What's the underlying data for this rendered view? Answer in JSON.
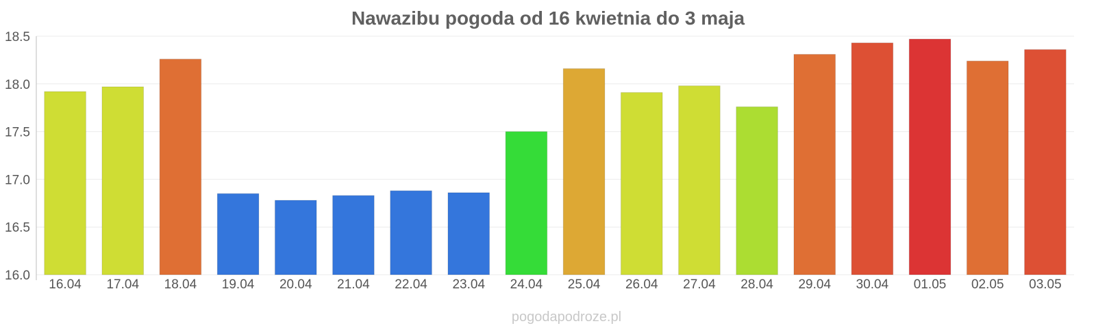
{
  "chart_data": {
    "type": "bar",
    "title": "Nawazibu pogoda od 16 kwietnia do 3 maja",
    "xlabel": "",
    "ylabel": "",
    "ylim": [
      16.0,
      18.5
    ],
    "yticks": [
      "16.0",
      "16.5",
      "17.0",
      "17.5",
      "18.0",
      "18.5"
    ],
    "categories": [
      "16.04",
      "17.04",
      "18.04",
      "19.04",
      "20.04",
      "21.04",
      "22.04",
      "23.04",
      "24.04",
      "25.04",
      "26.04",
      "27.04",
      "28.04",
      "29.04",
      "30.04",
      "01.05",
      "02.05",
      "03.05"
    ],
    "values": [
      17.92,
      17.97,
      18.26,
      16.85,
      16.78,
      16.83,
      16.88,
      16.86,
      17.5,
      18.16,
      17.91,
      17.98,
      17.76,
      18.31,
      18.43,
      18.47,
      18.24,
      18.36
    ],
    "colors": [
      "#cfdd34",
      "#cfdd34",
      "#df6f34",
      "#3476dc",
      "#3476dc",
      "#3476dc",
      "#3476dc",
      "#3476dc",
      "#35dc38",
      "#dda834",
      "#cfdd34",
      "#cfdd34",
      "#acdd32",
      "#df6f34",
      "#dd5034",
      "#dc3434",
      "#df6f34",
      "#dd5034"
    ],
    "grid": true,
    "legend": "none"
  },
  "watermark": "pogodapodroze.pl"
}
